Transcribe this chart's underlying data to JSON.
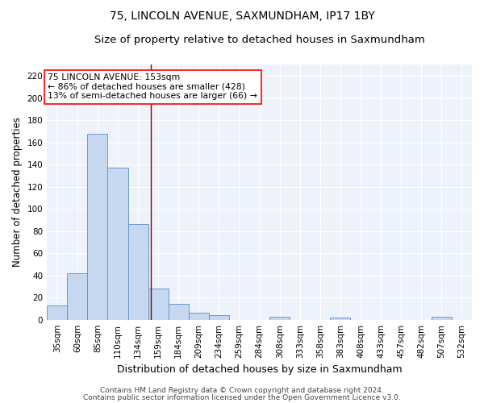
{
  "title": "75, LINCOLN AVENUE, SAXMUNDHAM, IP17 1BY",
  "subtitle": "Size of property relative to detached houses in Saxmundham",
  "xlabel": "Distribution of detached houses by size in Saxmundham",
  "ylabel": "Number of detached properties",
  "categories": [
    "35sqm",
    "60sqm",
    "85sqm",
    "110sqm",
    "134sqm",
    "159sqm",
    "184sqm",
    "209sqm",
    "234sqm",
    "259sqm",
    "284sqm",
    "308sqm",
    "333sqm",
    "358sqm",
    "383sqm",
    "408sqm",
    "433sqm",
    "457sqm",
    "482sqm",
    "507sqm",
    "532sqm"
  ],
  "values": [
    13,
    42,
    168,
    137,
    86,
    28,
    14,
    6,
    4,
    0,
    0,
    3,
    0,
    0,
    2,
    0,
    0,
    0,
    0,
    3,
    0
  ],
  "bar_color": "#c5d8f0",
  "bar_edge_color": "#5b8fc9",
  "vline_x": 4.62,
  "vline_color": "#8b0000",
  "annotation_text": "75 LINCOLN AVENUE: 153sqm\n← 86% of detached houses are smaller (428)\n13% of semi-detached houses are larger (66) →",
  "annotation_box_color": "white",
  "annotation_box_edge": "red",
  "ylim": [
    0,
    230
  ],
  "yticks": [
    0,
    20,
    40,
    60,
    80,
    100,
    120,
    140,
    160,
    180,
    200,
    220
  ],
  "footer1": "Contains HM Land Registry data © Crown copyright and database right 2024.",
  "footer2": "Contains public sector information licensed under the Open Government Licence v3.0.",
  "bg_color": "#eef2fb",
  "grid_color": "white",
  "title_fontsize": 10,
  "subtitle_fontsize": 9.5,
  "xlabel_fontsize": 9,
  "ylabel_fontsize": 8.5,
  "tick_fontsize": 7.5,
  "annot_fontsize": 7.8,
  "footer_fontsize": 6.5
}
